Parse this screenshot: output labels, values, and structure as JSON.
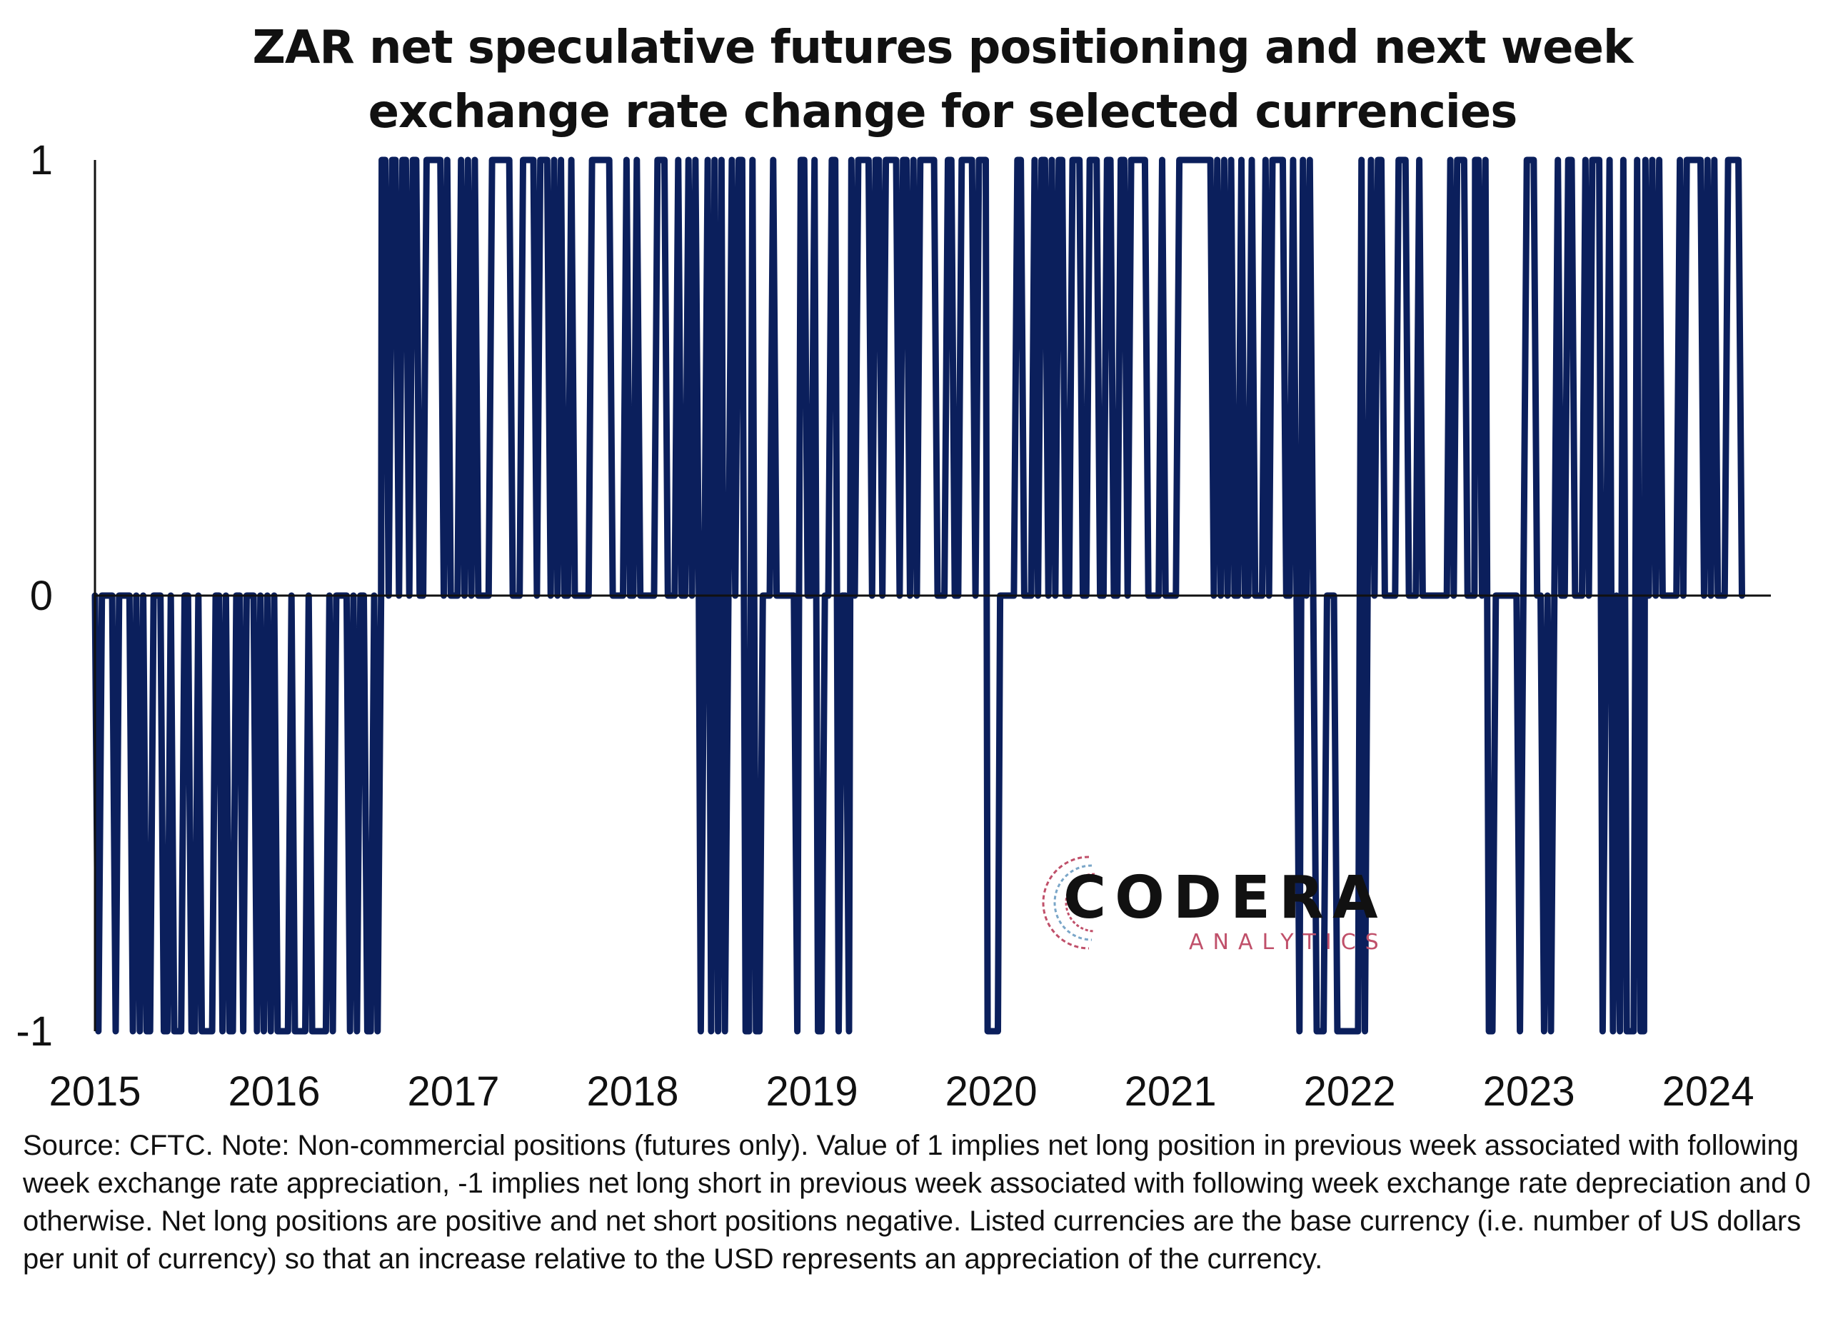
{
  "title_lines": [
    "ZAR net speculative futures positioning and next week",
    "exchange rate change for selected currencies"
  ],
  "note": "Source: CFTC. Note: Non-commercial positions (futures only). Value of 1 implies net long position in previous week associated with following week exchange rate appreciation, -1 implies net long short in previous week associated with following week exchange rate depreciation and 0 otherwise. Net long positions are positive and net short positions negative. Listed currencies are the base currency (i.e. number of US dollars per unit of currency) so that an increase relative to the USD represents an appreciation of the currency.",
  "logo": {
    "name": "CODERA",
    "sub": "ANALYTICS"
  },
  "colors": {
    "series": "#0b1f5c",
    "axis": "#111111",
    "text": "#111111",
    "logo_accent": "#c0506a"
  },
  "chart_data": {
    "type": "line",
    "title": "ZAR net speculative futures positioning and next week exchange rate change for selected currencies",
    "xlabel": "",
    "ylabel": "",
    "ylim": [
      -1,
      1
    ],
    "yticks": [
      "1",
      "0",
      "-1"
    ],
    "xticks": [
      "2015",
      "2016",
      "2017",
      "2018",
      "2019",
      "2020",
      "2021",
      "2022",
      "2023",
      "2024"
    ],
    "xlim": [
      2015.0,
      2024.35
    ],
    "grid": false,
    "legend": "none",
    "regime_note": "weekly observations; values only take -1, 0 or 1",
    "segments": [
      {
        "start": 2015.0,
        "end": 2016.6,
        "values": [
          -1,
          0
        ]
      },
      {
        "start": 2016.6,
        "end": 2018.38,
        "values": [
          0,
          1
        ]
      },
      {
        "start": 2018.38,
        "end": 2019.22,
        "values": [
          -1,
          0,
          1
        ]
      },
      {
        "start": 2019.22,
        "end": 2019.98,
        "values": [
          0,
          1
        ]
      },
      {
        "start": 2019.98,
        "end": 2020.05,
        "values": [
          -1,
          0
        ]
      },
      {
        "start": 2020.05,
        "end": 2021.72,
        "values": [
          0,
          1
        ]
      },
      {
        "start": 2021.72,
        "end": 2022.1,
        "values": [
          -1,
          0,
          1
        ]
      },
      {
        "start": 2022.1,
        "end": 2022.7,
        "values": [
          0,
          1
        ]
      },
      {
        "start": 2022.7,
        "end": 2023.65,
        "values": [
          -1,
          0,
          1
        ]
      },
      {
        "start": 2023.65,
        "end": 2024.2,
        "values": [
          0,
          1
        ]
      }
    ]
  }
}
